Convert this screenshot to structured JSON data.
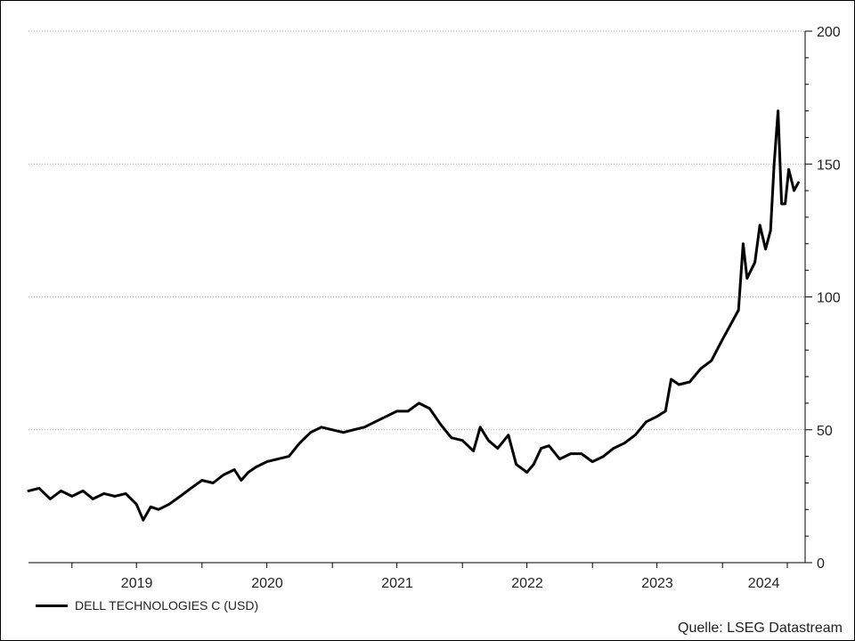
{
  "chart_data": {
    "type": "line",
    "title": "",
    "xlabel": "",
    "ylabel": "",
    "ylim": [
      0,
      200
    ],
    "y_ticks": [
      0,
      50,
      100,
      150,
      200
    ],
    "y_axis_side": "right",
    "grid": "horizontal dotted",
    "x_range": [
      "2018-09-01",
      "2024-08-20"
    ],
    "x_year_labels": [
      "2019",
      "2020",
      "2021",
      "2022",
      "2023",
      "2024"
    ],
    "legend_position": "bottom-left",
    "source": "Quelle: LSEG Datastream",
    "series": [
      {
        "name": "DELL TECHNOLOGIES C (USD)",
        "color": "#000000",
        "points": [
          [
            "2018-09-01",
            27
          ],
          [
            "2018-10-01",
            28
          ],
          [
            "2018-11-01",
            24
          ],
          [
            "2018-12-01",
            27
          ],
          [
            "2019-01-01",
            25
          ],
          [
            "2019-02-01",
            27
          ],
          [
            "2019-03-01",
            24
          ],
          [
            "2019-04-01",
            26
          ],
          [
            "2019-05-01",
            25
          ],
          [
            "2019-06-01",
            26
          ],
          [
            "2019-07-01",
            22
          ],
          [
            "2019-07-20",
            16
          ],
          [
            "2019-08-10",
            21
          ],
          [
            "2019-09-01",
            20
          ],
          [
            "2019-10-01",
            22
          ],
          [
            "2019-11-01",
            25
          ],
          [
            "2019-12-01",
            28
          ],
          [
            "2020-01-01",
            31
          ],
          [
            "2020-02-01",
            30
          ],
          [
            "2020-03-01",
            33
          ],
          [
            "2020-04-01",
            35
          ],
          [
            "2020-04-20",
            31
          ],
          [
            "2020-05-10",
            34
          ],
          [
            "2020-06-01",
            36
          ],
          [
            "2020-07-01",
            38
          ],
          [
            "2020-08-01",
            39
          ],
          [
            "2020-09-01",
            40
          ],
          [
            "2020-10-01",
            45
          ],
          [
            "2020-11-01",
            49
          ],
          [
            "2020-12-01",
            51
          ],
          [
            "2021-01-01",
            50
          ],
          [
            "2021-02-01",
            49
          ],
          [
            "2021-03-01",
            50
          ],
          [
            "2021-04-01",
            51
          ],
          [
            "2021-05-01",
            53
          ],
          [
            "2021-06-01",
            55
          ],
          [
            "2021-07-01",
            57
          ],
          [
            "2021-08-01",
            57
          ],
          [
            "2021-09-01",
            60
          ],
          [
            "2021-10-01",
            58
          ],
          [
            "2021-11-01",
            52
          ],
          [
            "2021-12-01",
            47
          ],
          [
            "2022-01-01",
            46
          ],
          [
            "2022-02-01",
            42
          ],
          [
            "2022-02-20",
            51
          ],
          [
            "2022-03-15",
            46
          ],
          [
            "2022-04-10",
            43
          ],
          [
            "2022-05-10",
            48
          ],
          [
            "2022-06-01",
            37
          ],
          [
            "2022-07-01",
            34
          ],
          [
            "2022-07-20",
            37
          ],
          [
            "2022-08-10",
            43
          ],
          [
            "2022-09-01",
            44
          ],
          [
            "2022-10-01",
            39
          ],
          [
            "2022-11-01",
            41
          ],
          [
            "2022-12-01",
            41
          ],
          [
            "2023-01-01",
            38
          ],
          [
            "2023-02-01",
            40
          ],
          [
            "2023-03-01",
            43
          ],
          [
            "2023-04-01",
            45
          ],
          [
            "2023-05-01",
            48
          ],
          [
            "2023-06-01",
            53
          ],
          [
            "2023-07-01",
            55
          ],
          [
            "2023-07-25",
            57
          ],
          [
            "2023-08-10",
            69
          ],
          [
            "2023-09-01",
            67
          ],
          [
            "2023-10-01",
            68
          ],
          [
            "2023-11-01",
            73
          ],
          [
            "2023-12-01",
            76
          ],
          [
            "2024-01-01",
            84
          ],
          [
            "2024-02-15",
            95
          ],
          [
            "2024-02-28",
            120
          ],
          [
            "2024-03-10",
            107
          ],
          [
            "2024-04-01",
            113
          ],
          [
            "2024-04-15",
            127
          ],
          [
            "2024-05-01",
            118
          ],
          [
            "2024-05-15",
            125
          ],
          [
            "2024-05-25",
            150
          ],
          [
            "2024-06-05",
            170
          ],
          [
            "2024-06-15",
            135
          ],
          [
            "2024-06-25",
            135
          ],
          [
            "2024-07-05",
            148
          ],
          [
            "2024-07-20",
            140
          ],
          [
            "2024-08-01",
            143
          ]
        ]
      }
    ]
  }
}
